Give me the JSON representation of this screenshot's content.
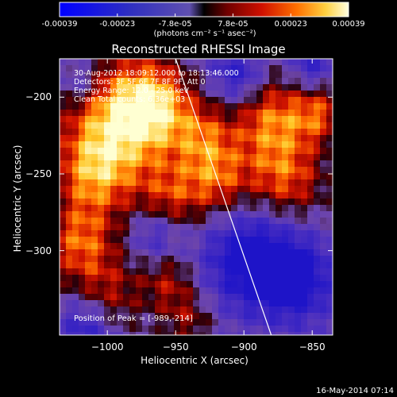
{
  "colorbar": {
    "tick_labels": [
      "-0.00039",
      "-0.00023",
      "-7.8e-05",
      "7.8e-05",
      "0.00023",
      "0.00039"
    ],
    "units": "(photons cm⁻² s⁻¹ asec⁻²)",
    "range": [
      -0.00039,
      0.00039
    ]
  },
  "overlay": {
    "time_range": "30-Aug-2012 18:09:12.000 to 18:13:46.000",
    "detectors": "Detectors: 3F 5F 6F 7F 8F 9F, Att 0",
    "energy_range": "Energy Range: 12.0 - 25.0 keV",
    "clean_counts": "Clean    Total counts: 6.36e+03",
    "peak_position": "Position of Peak = [-989,-214]"
  },
  "chart_data": {
    "type": "heatmap",
    "title": "Reconstructed RHESSI Image",
    "xlabel": "Heliocentric X (arcsec)",
    "ylabel": "Heliocentric Y (arcsec)",
    "xlim": [
      -1035,
      -835
    ],
    "ylim": [
      -355,
      -175
    ],
    "xticks": [
      -1000,
      -950,
      -900,
      -850
    ],
    "yticks": [
      -200,
      -250,
      -300
    ],
    "xtick_labels": [
      "−1000",
      "−950",
      "−900",
      "−850"
    ],
    "ytick_labels": [
      "−200",
      "−250",
      "−300"
    ],
    "limb_line": [
      [
        -950,
        -175
      ],
      [
        -880,
        -355
      ]
    ],
    "peak": [
      -989,
      -214
    ],
    "grid": false
  },
  "footer": {
    "timestamp": "16-May-2014 07:14"
  }
}
